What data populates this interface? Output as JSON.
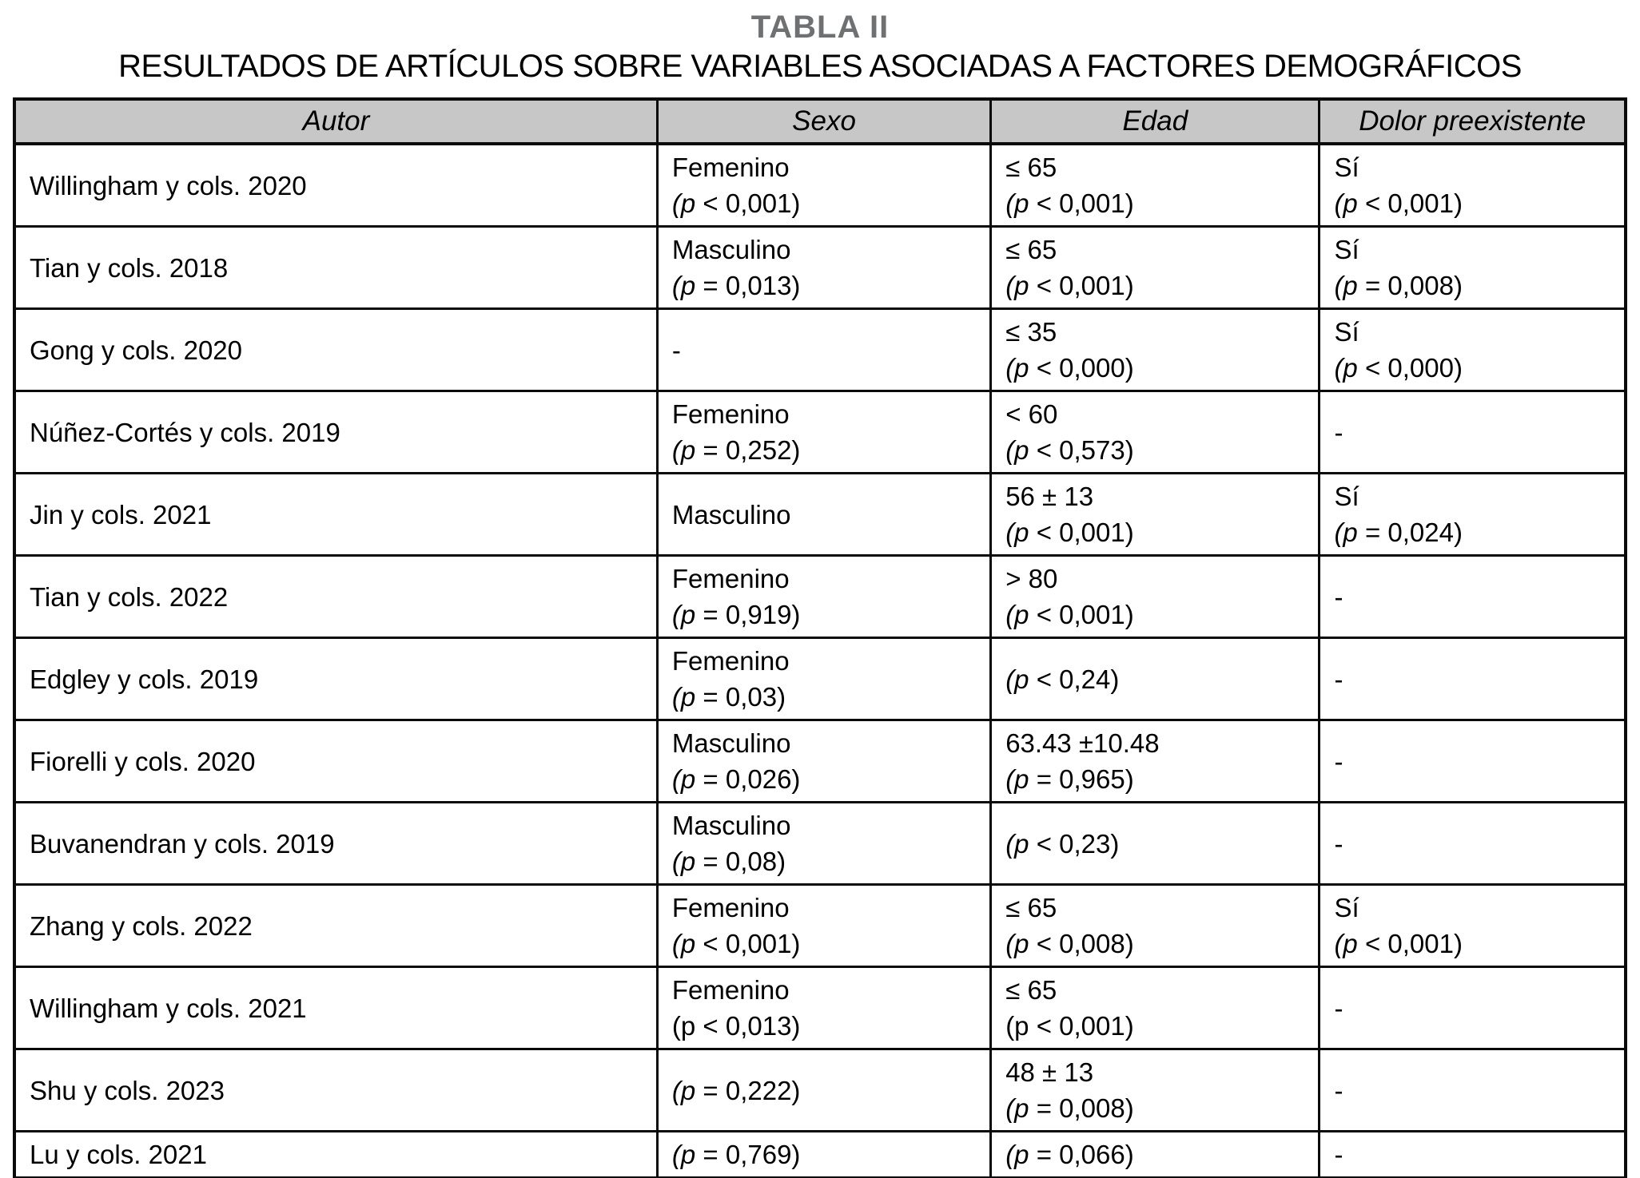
{
  "title": "TABLA II",
  "subtitle": "RESULTADOS DE ARTÍCULOS SOBRE VARIABLES ASOCIADAS A FACTORES DEMOGRÁFICOS",
  "colors": {
    "header_bg": "#c7c7c7",
    "border": "#0a0a0a",
    "title_text": "#6f7072",
    "body_text": "#000000"
  },
  "table": {
    "columns": [
      {
        "key": "autor",
        "label": "Autor"
      },
      {
        "key": "sexo",
        "label": "Sexo"
      },
      {
        "key": "edad",
        "label": "Edad"
      },
      {
        "key": "dolor",
        "label": "Dolor preexistente"
      }
    ],
    "rows": [
      {
        "autor": "Willingham y cols. 2020",
        "sexo": [
          "Femenino",
          "(p < 0,001)"
        ],
        "edad": [
          "≤ 65",
          "(p < 0,001)"
        ],
        "dolor": [
          "Sí",
          "(p < 0,001)"
        ]
      },
      {
        "autor": "Tian y cols. 2018",
        "sexo": [
          "Masculino",
          "(p = 0,013)"
        ],
        "edad": [
          "≤ 65",
          "(p < 0,001)"
        ],
        "dolor": [
          "Sí",
          "(p = 0,008)"
        ]
      },
      {
        "autor": "Gong y cols. 2020",
        "sexo": [
          "-"
        ],
        "edad": [
          "≤ 35",
          "(p < 0,000)"
        ],
        "dolor": [
          "Sí",
          "(p < 0,000)"
        ]
      },
      {
        "autor": "Núñez-Cortés y cols. 2019",
        "sexo": [
          "Femenino",
          "(p = 0,252)"
        ],
        "edad": [
          "< 60",
          "(p < 0,573)"
        ],
        "dolor": [
          "-"
        ]
      },
      {
        "autor": "Jin y cols. 2021",
        "sexo": [
          "Masculino"
        ],
        "edad": [
          "56 ± 13",
          "(p < 0,001)"
        ],
        "dolor": [
          "Sí",
          "(p = 0,024)"
        ]
      },
      {
        "autor": "Tian y cols. 2022",
        "sexo": [
          "Femenino",
          "(p = 0,919)"
        ],
        "edad": [
          "> 80",
          "(p < 0,001)"
        ],
        "dolor": [
          "-"
        ]
      },
      {
        "autor": "Edgley y cols. 2019",
        "sexo": [
          "Femenino",
          "(p = 0,03)"
        ],
        "edad": [
          "(p < 0,24)"
        ],
        "dolor": [
          "-"
        ]
      },
      {
        "autor": "Fiorelli y cols. 2020",
        "sexo": [
          "Masculino",
          "(p = 0,026)"
        ],
        "edad": [
          "63.43 ±10.48",
          "(p = 0,965)"
        ],
        "dolor": [
          "-"
        ]
      },
      {
        "autor": "Buvanendran y cols. 2019",
        "sexo": [
          "Masculino",
          "(p = 0,08)"
        ],
        "edad": [
          "(p < 0,23)"
        ],
        "dolor": [
          "-"
        ]
      },
      {
        "autor": "Zhang y cols. 2022",
        "sexo": [
          "Femenino",
          "(p < 0,001)"
        ],
        "edad": [
          "≤ 65",
          "(p < 0,008)"
        ],
        "dolor": [
          "Sí",
          "(p < 0,001)"
        ]
      },
      {
        "autor": "Willingham y cols. 2021",
        "plain_p": true,
        "sexo": [
          "Femenino",
          "(p < 0,013)"
        ],
        "edad": [
          "≤ 65",
          "(p < 0,001)"
        ],
        "dolor": [
          "-"
        ]
      },
      {
        "autor": "Shu y cols. 2023",
        "sexo": [
          "(p = 0,222)"
        ],
        "edad": [
          "48 ± 13",
          "(p = 0,008)"
        ],
        "dolor": [
          "-"
        ]
      },
      {
        "autor": "Lu y cols. 2021",
        "sexo": [
          "(p = 0,769)"
        ],
        "edad": [
          "(p = 0,066)"
        ],
        "dolor": [
          "-"
        ]
      }
    ]
  }
}
